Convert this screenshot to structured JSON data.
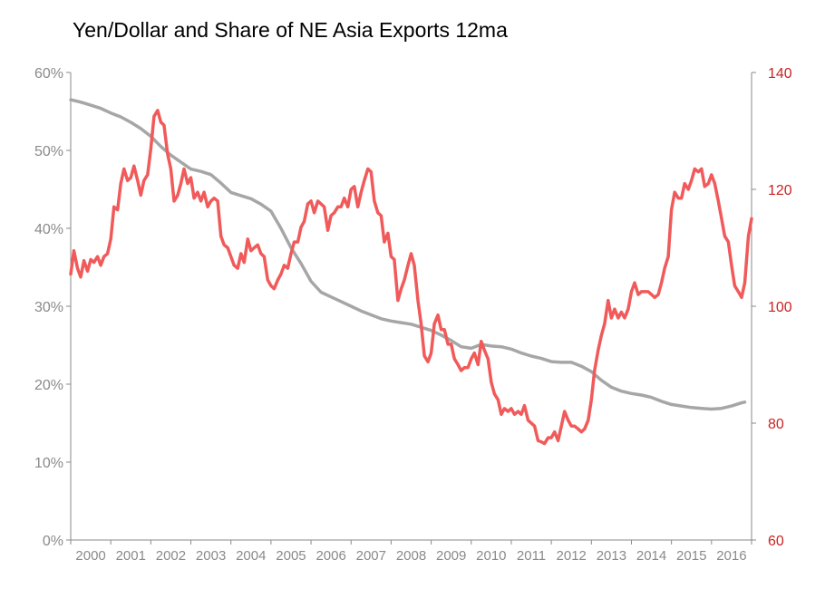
{
  "chart_data": {
    "type": "line",
    "title": "Yen/Dollar and Share of NE Asia Exports 12ma",
    "x_tick_labels": [
      "2000",
      "2001",
      "2002",
      "2003",
      "2004",
      "2005",
      "2006",
      "2007",
      "2008",
      "2009",
      "2010",
      "2011",
      "2012",
      "2013",
      "2014",
      "2015",
      "2016"
    ],
    "left_axis": {
      "ylim": [
        0,
        60
      ],
      "tick_labels": [
        "0%",
        "10%",
        "20%",
        "30%",
        "40%",
        "50%",
        "60%"
      ],
      "color": "#8a8a8a"
    },
    "right_axis": {
      "ylim": [
        60,
        140
      ],
      "tick_labels": [
        "60",
        "80",
        "100",
        "120",
        "140"
      ],
      "color": "#cc2222"
    },
    "grid": false,
    "legend": "none",
    "series": [
      {
        "axis": "left",
        "color": "#a6a6a6",
        "points": [
          [
            2000.0,
            56.5
          ],
          [
            2000.25,
            56.2
          ],
          [
            2000.5,
            55.8
          ],
          [
            2000.75,
            55.4
          ],
          [
            2001.0,
            54.8
          ],
          [
            2001.25,
            54.3
          ],
          [
            2001.5,
            53.6
          ],
          [
            2001.75,
            52.8
          ],
          [
            2002.0,
            51.8
          ],
          [
            2002.25,
            50.5
          ],
          [
            2002.5,
            49.4
          ],
          [
            2002.75,
            48.5
          ],
          [
            2003.0,
            47.6
          ],
          [
            2003.25,
            47.3
          ],
          [
            2003.5,
            46.9
          ],
          [
            2003.75,
            45.8
          ],
          [
            2004.0,
            44.6
          ],
          [
            2004.25,
            44.2
          ],
          [
            2004.5,
            43.8
          ],
          [
            2004.75,
            43.1
          ],
          [
            2005.0,
            42.2
          ],
          [
            2005.25,
            40.0
          ],
          [
            2005.5,
            37.5
          ],
          [
            2005.75,
            35.5
          ],
          [
            2006.0,
            33.2
          ],
          [
            2006.25,
            31.8
          ],
          [
            2006.5,
            31.2
          ],
          [
            2006.75,
            30.6
          ],
          [
            2007.0,
            30.0
          ],
          [
            2007.25,
            29.4
          ],
          [
            2007.5,
            28.9
          ],
          [
            2007.75,
            28.4
          ],
          [
            2008.0,
            28.1
          ],
          [
            2008.25,
            27.9
          ],
          [
            2008.5,
            27.7
          ],
          [
            2008.75,
            27.3
          ],
          [
            2009.0,
            26.9
          ],
          [
            2009.25,
            26.3
          ],
          [
            2009.5,
            25.6
          ],
          [
            2009.75,
            24.8
          ],
          [
            2010.0,
            24.6
          ],
          [
            2010.25,
            25.1
          ],
          [
            2010.5,
            24.9
          ],
          [
            2010.75,
            24.8
          ],
          [
            2011.0,
            24.5
          ],
          [
            2011.25,
            24.0
          ],
          [
            2011.5,
            23.6
          ],
          [
            2011.75,
            23.3
          ],
          [
            2012.0,
            22.9
          ],
          [
            2012.25,
            22.8
          ],
          [
            2012.5,
            22.8
          ],
          [
            2012.75,
            22.3
          ],
          [
            2013.0,
            21.6
          ],
          [
            2013.25,
            20.5
          ],
          [
            2013.5,
            19.6
          ],
          [
            2013.75,
            19.1
          ],
          [
            2014.0,
            18.8
          ],
          [
            2014.25,
            18.6
          ],
          [
            2014.5,
            18.3
          ],
          [
            2014.75,
            17.8
          ],
          [
            2015.0,
            17.4
          ],
          [
            2015.25,
            17.2
          ],
          [
            2015.5,
            17.0
          ],
          [
            2015.75,
            16.9
          ],
          [
            2016.0,
            16.8
          ],
          [
            2016.25,
            16.9
          ],
          [
            2016.5,
            17.2
          ],
          [
            2016.75,
            17.6
          ],
          [
            2016.83,
            17.7
          ]
        ]
      },
      {
        "axis": "right",
        "color": "#f05a5a",
        "points": [
          [
            2000.0,
            105.5
          ],
          [
            2000.08,
            109.5
          ],
          [
            2000.17,
            106.5
          ],
          [
            2000.25,
            105.0
          ],
          [
            2000.33,
            107.8
          ],
          [
            2000.42,
            106.0
          ],
          [
            2000.5,
            108.0
          ],
          [
            2000.58,
            107.5
          ],
          [
            2000.67,
            108.5
          ],
          [
            2000.75,
            107.0
          ],
          [
            2000.83,
            108.5
          ],
          [
            2000.92,
            109.0
          ],
          [
            2001.0,
            111.5
          ],
          [
            2001.08,
            117.0
          ],
          [
            2001.17,
            116.5
          ],
          [
            2001.25,
            121.0
          ],
          [
            2001.33,
            123.5
          ],
          [
            2001.42,
            121.5
          ],
          [
            2001.5,
            122.0
          ],
          [
            2001.58,
            124.0
          ],
          [
            2001.67,
            121.5
          ],
          [
            2001.75,
            119.0
          ],
          [
            2001.83,
            121.5
          ],
          [
            2001.92,
            122.5
          ],
          [
            2002.0,
            127.0
          ],
          [
            2002.08,
            132.5
          ],
          [
            2002.17,
            133.5
          ],
          [
            2002.25,
            131.5
          ],
          [
            2002.33,
            131.0
          ],
          [
            2002.42,
            126.0
          ],
          [
            2002.5,
            123.5
          ],
          [
            2002.58,
            118.0
          ],
          [
            2002.67,
            119.0
          ],
          [
            2002.75,
            121.0
          ],
          [
            2002.83,
            123.5
          ],
          [
            2002.92,
            121.0
          ],
          [
            2003.0,
            122.0
          ],
          [
            2003.08,
            118.5
          ],
          [
            2003.17,
            119.5
          ],
          [
            2003.25,
            118.0
          ],
          [
            2003.33,
            119.5
          ],
          [
            2003.42,
            117.0
          ],
          [
            2003.5,
            118.0
          ],
          [
            2003.58,
            118.5
          ],
          [
            2003.67,
            118.0
          ],
          [
            2003.75,
            112.0
          ],
          [
            2003.83,
            110.5
          ],
          [
            2003.92,
            110.0
          ],
          [
            2004.0,
            108.5
          ],
          [
            2004.08,
            107.0
          ],
          [
            2004.17,
            106.5
          ],
          [
            2004.25,
            109.0
          ],
          [
            2004.33,
            107.5
          ],
          [
            2004.42,
            111.5
          ],
          [
            2004.5,
            109.5
          ],
          [
            2004.58,
            110.0
          ],
          [
            2004.67,
            110.5
          ],
          [
            2004.75,
            109.0
          ],
          [
            2004.83,
            108.5
          ],
          [
            2004.92,
            104.5
          ],
          [
            2005.0,
            103.5
          ],
          [
            2005.08,
            103.0
          ],
          [
            2005.17,
            104.5
          ],
          [
            2005.25,
            105.5
          ],
          [
            2005.33,
            107.0
          ],
          [
            2005.42,
            106.5
          ],
          [
            2005.5,
            109.0
          ],
          [
            2005.58,
            111.0
          ],
          [
            2005.67,
            111.0
          ],
          [
            2005.75,
            113.5
          ],
          [
            2005.83,
            114.5
          ],
          [
            2005.92,
            117.5
          ],
          [
            2006.0,
            118.0
          ],
          [
            2006.08,
            116.0
          ],
          [
            2006.17,
            118.0
          ],
          [
            2006.25,
            117.5
          ],
          [
            2006.33,
            117.0
          ],
          [
            2006.42,
            113.0
          ],
          [
            2006.5,
            115.5
          ],
          [
            2006.58,
            116.0
          ],
          [
            2006.67,
            117.0
          ],
          [
            2006.75,
            117.0
          ],
          [
            2006.83,
            118.5
          ],
          [
            2006.92,
            117.0
          ],
          [
            2007.0,
            120.0
          ],
          [
            2007.08,
            120.5
          ],
          [
            2007.17,
            117.0
          ],
          [
            2007.25,
            119.5
          ],
          [
            2007.33,
            121.5
          ],
          [
            2007.42,
            123.5
          ],
          [
            2007.5,
            123.0
          ],
          [
            2007.58,
            118.0
          ],
          [
            2007.67,
            116.0
          ],
          [
            2007.75,
            115.5
          ],
          [
            2007.83,
            111.0
          ],
          [
            2007.92,
            112.5
          ],
          [
            2008.0,
            108.5
          ],
          [
            2008.08,
            108.0
          ],
          [
            2008.17,
            101.0
          ],
          [
            2008.25,
            103.0
          ],
          [
            2008.33,
            104.5
          ],
          [
            2008.42,
            107.0
          ],
          [
            2008.5,
            109.0
          ],
          [
            2008.58,
            107.0
          ],
          [
            2008.67,
            101.0
          ],
          [
            2008.75,
            97.0
          ],
          [
            2008.83,
            91.5
          ],
          [
            2008.92,
            90.5
          ],
          [
            2009.0,
            92.0
          ],
          [
            2009.08,
            97.0
          ],
          [
            2009.17,
            98.5
          ],
          [
            2009.25,
            96.0
          ],
          [
            2009.33,
            96.0
          ],
          [
            2009.42,
            93.5
          ],
          [
            2009.5,
            93.5
          ],
          [
            2009.58,
            91.0
          ],
          [
            2009.67,
            90.0
          ],
          [
            2009.75,
            89.0
          ],
          [
            2009.83,
            89.5
          ],
          [
            2009.92,
            89.5
          ],
          [
            2010.0,
            91.0
          ],
          [
            2010.08,
            92.0
          ],
          [
            2010.17,
            90.0
          ],
          [
            2010.25,
            94.0
          ],
          [
            2010.33,
            92.5
          ],
          [
            2010.42,
            91.0
          ],
          [
            2010.5,
            87.0
          ],
          [
            2010.58,
            85.0
          ],
          [
            2010.67,
            84.0
          ],
          [
            2010.75,
            81.5
          ],
          [
            2010.83,
            82.5
          ],
          [
            2010.92,
            82.0
          ],
          [
            2011.0,
            82.5
          ],
          [
            2011.08,
            81.5
          ],
          [
            2011.17,
            82.0
          ],
          [
            2011.25,
            81.5
          ],
          [
            2011.33,
            83.0
          ],
          [
            2011.42,
            80.5
          ],
          [
            2011.5,
            80.0
          ],
          [
            2011.58,
            79.5
          ],
          [
            2011.67,
            77.0
          ],
          [
            2011.75,
            76.8
          ],
          [
            2011.83,
            76.5
          ],
          [
            2011.92,
            77.5
          ],
          [
            2012.0,
            77.5
          ],
          [
            2012.08,
            78.5
          ],
          [
            2012.17,
            77.0
          ],
          [
            2012.25,
            79.5
          ],
          [
            2012.33,
            82.0
          ],
          [
            2012.42,
            80.5
          ],
          [
            2012.5,
            79.5
          ],
          [
            2012.58,
            79.5
          ],
          [
            2012.67,
            79.0
          ],
          [
            2012.75,
            78.5
          ],
          [
            2012.83,
            79.0
          ],
          [
            2012.92,
            80.5
          ],
          [
            2013.0,
            84.0
          ],
          [
            2013.08,
            89.0
          ],
          [
            2013.17,
            92.5
          ],
          [
            2013.25,
            95.0
          ],
          [
            2013.33,
            97.0
          ],
          [
            2013.42,
            101.0
          ],
          [
            2013.5,
            98.0
          ],
          [
            2013.58,
            99.5
          ],
          [
            2013.67,
            98.0
          ],
          [
            2013.75,
            99.0
          ],
          [
            2013.83,
            98.0
          ],
          [
            2013.92,
            99.5
          ],
          [
            2014.0,
            102.5
          ],
          [
            2014.08,
            104.0
          ],
          [
            2014.17,
            102.0
          ],
          [
            2014.25,
            102.5
          ],
          [
            2014.33,
            102.5
          ],
          [
            2014.42,
            102.5
          ],
          [
            2014.5,
            102.0
          ],
          [
            2014.58,
            101.5
          ],
          [
            2014.67,
            102.0
          ],
          [
            2014.75,
            104.0
          ],
          [
            2014.83,
            106.5
          ],
          [
            2014.92,
            108.5
          ],
          [
            2015.0,
            116.5
          ],
          [
            2015.08,
            119.5
          ],
          [
            2015.17,
            118.5
          ],
          [
            2015.25,
            118.5
          ],
          [
            2015.33,
            121.0
          ],
          [
            2015.42,
            120.0
          ],
          [
            2015.5,
            121.5
          ],
          [
            2015.58,
            123.5
          ],
          [
            2015.67,
            123.0
          ],
          [
            2015.75,
            123.5
          ],
          [
            2015.83,
            120.5
          ],
          [
            2015.92,
            121.0
          ],
          [
            2016.0,
            122.5
          ],
          [
            2016.08,
            121.0
          ],
          [
            2016.17,
            118.0
          ],
          [
            2016.25,
            115.0
          ],
          [
            2016.33,
            112.0
          ],
          [
            2016.42,
            111.0
          ],
          [
            2016.5,
            107.0
          ],
          [
            2016.58,
            103.5
          ],
          [
            2016.67,
            102.5
          ],
          [
            2016.75,
            101.5
          ],
          [
            2016.83,
            104.0
          ],
          [
            2016.92,
            112.0
          ],
          [
            2017.0,
            115.0
          ]
        ]
      }
    ]
  }
}
